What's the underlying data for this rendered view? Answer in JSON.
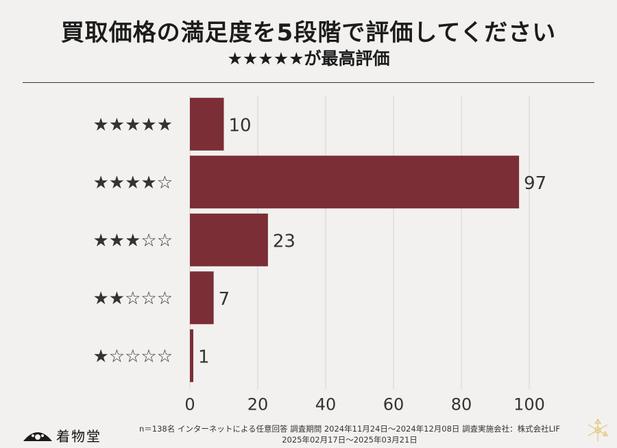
{
  "title": "買取価格の満足度を5段階で評価してください",
  "subtitle": "★★★★★が最高評価",
  "footnote_line1": "n＝138名 インターネットによる任意回答 調査期間 2024年11月24日〜2024年12月08日 調査実施会社：株式会社LIF",
  "footnote_line2": "2025年02月17日〜2025年03月21日",
  "logo_text": "着物堂",
  "colors": {
    "bar": "#7b2e35",
    "grid": "#d3d3d3",
    "text": "#333333"
  },
  "chart_data": {
    "type": "bar",
    "orientation": "horizontal",
    "categories": [
      "★★★★★",
      "★★★★☆",
      "★★★☆☆",
      "★★☆☆☆",
      "★☆☆☆☆"
    ],
    "values": [
      10,
      97,
      23,
      7,
      1
    ],
    "xticks": [
      0,
      20,
      40,
      60,
      80,
      100
    ],
    "xlim": [
      0,
      100
    ],
    "grid": true,
    "data_labels": true
  }
}
